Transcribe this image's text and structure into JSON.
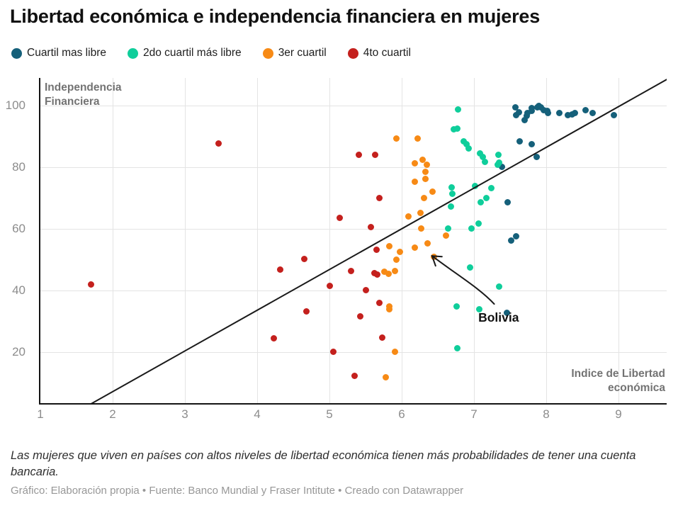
{
  "header": {
    "title": "Libertad económica e independencia financiera en mujeres"
  },
  "legend": [
    {
      "label": "Cuartil mas libre",
      "color": "#15607a"
    },
    {
      "label": "2do cuartil más libre",
      "color": "#0fce9b"
    },
    {
      "label": "3er cuartil",
      "color": "#f78a15"
    },
    {
      "label": "4to cuartil",
      "color": "#c4201d"
    }
  ],
  "axes": {
    "y_title": "Independencia\nFinanciera",
    "x_title": "Indice de Libertad\neconómica",
    "x_ticks": [
      1,
      2,
      3,
      4,
      5,
      6,
      7,
      8,
      9
    ],
    "y_ticks": [
      20,
      40,
      60,
      80,
      100
    ]
  },
  "chart_data": {
    "type": "scatter",
    "title": "Libertad económica e independencia financiera en mujeres",
    "xlabel": "Indice de Libertad económica",
    "ylabel": "Independencia Financiera",
    "xlim": [
      1,
      9.67
    ],
    "ylim": [
      3,
      108
    ],
    "grid": true,
    "legend_position": "top",
    "series": [
      {
        "name": "Cuartil mas libre",
        "color": "#15607a",
        "points": [
          [
            7.57,
            99.5
          ],
          [
            7.58,
            97.0
          ],
          [
            7.62,
            97.9
          ],
          [
            7.7,
            95.4
          ],
          [
            7.73,
            96.6
          ],
          [
            7.74,
            97.7
          ],
          [
            7.8,
            98.2
          ],
          [
            7.8,
            99.1
          ],
          [
            7.88,
            99.5
          ],
          [
            7.9,
            100
          ],
          [
            7.93,
            99.5
          ],
          [
            7.97,
            98.6
          ],
          [
            8.01,
            98.2
          ],
          [
            8.02,
            97.7
          ],
          [
            8.18,
            97.7
          ],
          [
            8.3,
            97.0
          ],
          [
            8.36,
            97.2
          ],
          [
            8.4,
            97.7
          ],
          [
            8.54,
            98.4
          ],
          [
            8.64,
            97.7
          ],
          [
            8.94,
            96.8
          ],
          [
            7.63,
            88.3
          ],
          [
            7.8,
            87.4
          ],
          [
            7.87,
            83.4
          ],
          [
            7.39,
            80.2
          ],
          [
            7.47,
            68.5
          ],
          [
            7.51,
            56.3
          ],
          [
            7.58,
            57.5
          ],
          [
            7.46,
            32.8
          ]
        ]
      },
      {
        "name": "2do cuartil más libre",
        "color": "#0fce9b",
        "points": [
          [
            6.78,
            98.8
          ],
          [
            6.72,
            92.2
          ],
          [
            6.77,
            92.6
          ],
          [
            6.86,
            88.3
          ],
          [
            6.9,
            87.4
          ],
          [
            6.93,
            86.2
          ],
          [
            7.08,
            84.4
          ],
          [
            7.34,
            84.1
          ],
          [
            7.12,
            83.4
          ],
          [
            7.15,
            81.8
          ],
          [
            7.35,
            81.6
          ],
          [
            7.33,
            80.9
          ],
          [
            7.01,
            73.8
          ],
          [
            7.24,
            73.3
          ],
          [
            6.69,
            73.4
          ],
          [
            6.7,
            71.4
          ],
          [
            7.09,
            68.5
          ],
          [
            7.17,
            69.9
          ],
          [
            6.68,
            67.2
          ],
          [
            6.64,
            60.0
          ],
          [
            6.97,
            60.2
          ],
          [
            7.06,
            61.8
          ],
          [
            6.95,
            47.5
          ],
          [
            7.35,
            41.2
          ],
          [
            6.76,
            34.8
          ],
          [
            7.07,
            33.9
          ],
          [
            6.77,
            21.2
          ]
        ]
      },
      {
        "name": "3er cuartil",
        "color": "#f78a15",
        "points": [
          [
            5.93,
            89.4
          ],
          [
            6.22,
            89.4
          ],
          [
            6.29,
            82.5
          ],
          [
            6.18,
            81.2
          ],
          [
            6.35,
            80.7
          ],
          [
            6.33,
            78.6
          ],
          [
            6.33,
            76.1
          ],
          [
            6.18,
            75.2
          ],
          [
            6.43,
            72.0
          ],
          [
            6.31,
            70.1
          ],
          [
            6.26,
            65.2
          ],
          [
            6.09,
            63.9
          ],
          [
            6.27,
            60.0
          ],
          [
            6.61,
            57.8
          ],
          [
            6.36,
            55.2
          ],
          [
            6.18,
            53.8
          ],
          [
            5.83,
            54.3
          ],
          [
            5.98,
            52.6
          ],
          [
            5.93,
            49.9
          ],
          [
            6.45,
            50.8
          ],
          [
            5.76,
            46.0
          ],
          [
            5.82,
            45.3
          ],
          [
            5.91,
            46.2
          ],
          [
            5.83,
            34.9
          ],
          [
            5.83,
            33.8
          ],
          [
            5.91,
            20.2
          ],
          [
            5.78,
            11.9
          ]
        ]
      },
      {
        "name": "4to cuartil",
        "color": "#c4201d",
        "points": [
          [
            1.7,
            41.9
          ],
          [
            3.47,
            87.6
          ],
          [
            5.41,
            84.1
          ],
          [
            5.63,
            84.1
          ],
          [
            5.69,
            69.9
          ],
          [
            5.14,
            63.6
          ],
          [
            5.57,
            60.5
          ],
          [
            5.65,
            53.3
          ],
          [
            4.65,
            50.3
          ],
          [
            4.32,
            46.8
          ],
          [
            5.3,
            46.3
          ],
          [
            5.62,
            45.6
          ],
          [
            5.66,
            45.2
          ],
          [
            5.5,
            40.2
          ],
          [
            5.0,
            41.5
          ],
          [
            5.69,
            35.9
          ],
          [
            5.43,
            31.5
          ],
          [
            4.68,
            33.2
          ],
          [
            5.73,
            24.8
          ],
          [
            4.23,
            24.5
          ],
          [
            5.05,
            20.1
          ],
          [
            5.35,
            12.2
          ]
        ]
      }
    ],
    "trend_line": {
      "x1": 1.686,
      "y1": 3.0,
      "x2": 9.67,
      "y2": 108.5,
      "color": "#1a1a1a"
    },
    "annotation": {
      "text": "Bolivia",
      "target": [
        6.45,
        50.8
      ],
      "text_pos": [
        7.06,
        33.6
      ],
      "arrow_bezier": [
        [
          7.28,
          35.6
        ],
        [
          7.08,
          40.7
        ],
        [
          6.75,
          45.3
        ],
        [
          6.42,
          51.2
        ]
      ]
    }
  },
  "footer": {
    "note": "Las mujeres que viven en países con altos niveles de libertad económica tienen más probabilidades de tener una cuenta bancaria.",
    "credits": "Gráfico: Elaboración propia • Fuente: Banco Mundial y Fraser Intitute  • Creado con Datawrapper"
  }
}
